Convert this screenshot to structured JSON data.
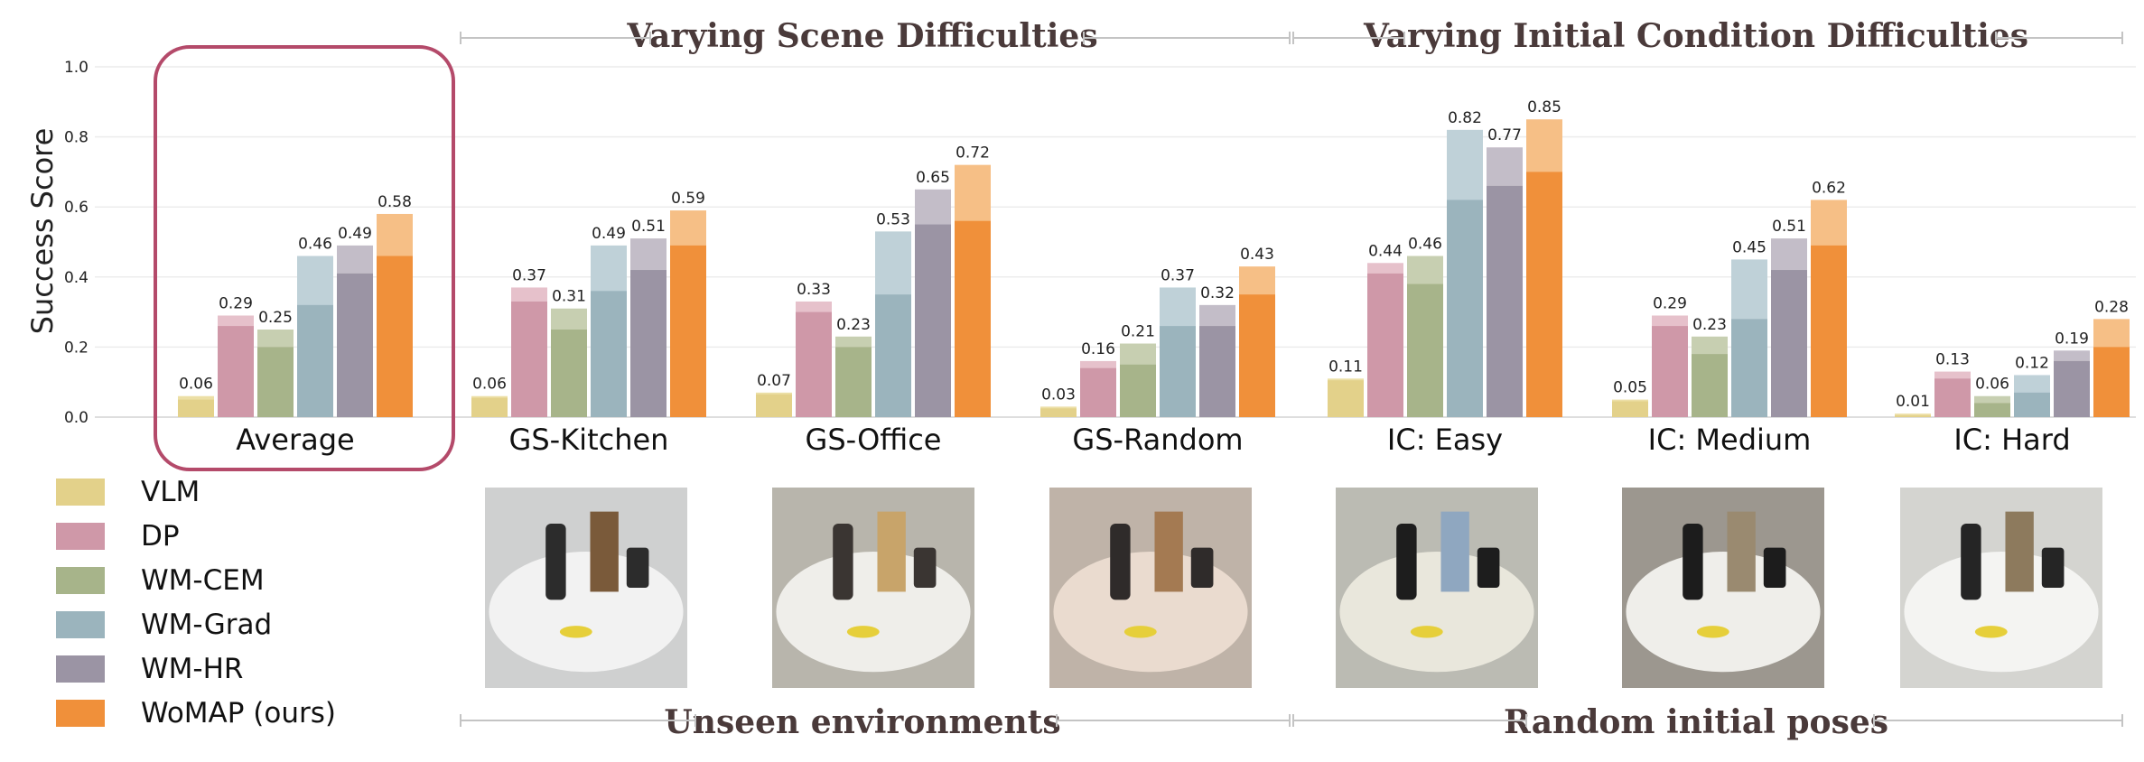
{
  "chart_data": {
    "type": "bar",
    "ylabel": "Success Score",
    "ylim": [
      0,
      1.0
    ],
    "yticks": [
      "0.0",
      "0.2",
      "0.4",
      "0.6",
      "0.8",
      "1.0"
    ],
    "grid": true,
    "legend_position": "bottom-left",
    "highlighted_group": "Average",
    "section_headers": [
      "Varying Scene Difficulties",
      "Varying Initial Condition Difficulties"
    ],
    "section_footers": [
      "Unseen environments",
      "Random initial poses"
    ],
    "categories": [
      "Average",
      "GS-Kitchen",
      "GS-Office",
      "GS-Random",
      "IC: Easy",
      "IC: Medium",
      "IC: Hard"
    ],
    "series": [
      {
        "name": "VLM",
        "color_light": "#ecdfa6",
        "color": "#e3d18a",
        "values": [
          0.06,
          0.06,
          0.07,
          0.03,
          0.11,
          0.05,
          0.01
        ],
        "lower_values": [
          0.05,
          0.055,
          0.065,
          0.025,
          0.105,
          0.045,
          0.005
        ]
      },
      {
        "name": "DP",
        "color_light": "#e6c1cb",
        "color": "#cf98a8",
        "values": [
          0.29,
          0.37,
          0.33,
          0.16,
          0.44,
          0.29,
          0.13
        ],
        "lower_values": [
          0.26,
          0.33,
          0.3,
          0.14,
          0.41,
          0.26,
          0.11
        ]
      },
      {
        "name": "WM-CEM",
        "color_light": "#c7cfb1",
        "color": "#a7b48a",
        "values": [
          0.25,
          0.31,
          0.23,
          0.21,
          0.46,
          0.23,
          0.06
        ],
        "lower_values": [
          0.2,
          0.25,
          0.2,
          0.15,
          0.38,
          0.18,
          0.04
        ]
      },
      {
        "name": "WM-Grad",
        "color_light": "#bfd1d8",
        "color": "#9bb4bd",
        "values": [
          0.46,
          0.49,
          0.53,
          0.37,
          0.82,
          0.45,
          0.12
        ],
        "lower_values": [
          0.32,
          0.36,
          0.35,
          0.26,
          0.62,
          0.28,
          0.07
        ]
      },
      {
        "name": "WM-HR",
        "color_light": "#c3bdc8",
        "color": "#9b94a4",
        "values": [
          0.49,
          0.51,
          0.65,
          0.32,
          0.77,
          0.51,
          0.19
        ],
        "lower_values": [
          0.41,
          0.42,
          0.55,
          0.26,
          0.66,
          0.42,
          0.16
        ]
      },
      {
        "name": "WoMAP (ours)",
        "color_light": "#f6bf86",
        "color": "#f0903a",
        "values": [
          0.58,
          0.59,
          0.72,
          0.43,
          0.85,
          0.62,
          0.28
        ],
        "lower_values": [
          0.46,
          0.49,
          0.56,
          0.35,
          0.7,
          0.49,
          0.2
        ]
      }
    ],
    "photos": [
      "GS-Kitchen scene",
      "GS-Office scene",
      "GS-Random scene",
      "IC: Easy scene",
      "IC: Medium scene",
      "IC: Hard scene"
    ]
  }
}
